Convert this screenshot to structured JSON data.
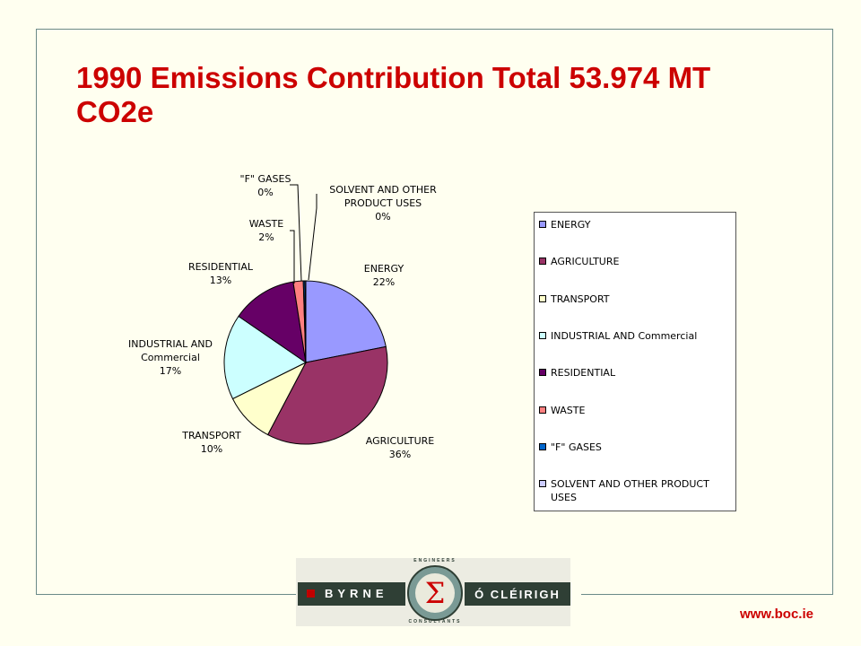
{
  "title": "1990 Emissions Contribution Total 53.974 MT CO2e",
  "chart_data": {
    "type": "pie",
    "title": "1990 Emissions Contribution Total 53.974 MT CO2e",
    "slices": [
      {
        "name": "ENERGY",
        "value": 22,
        "pct_label": "22%",
        "label_lines": [
          "ENERGY"
        ],
        "color": "#9999ff"
      },
      {
        "name": "AGRICULTURE",
        "value": 36,
        "pct_label": "36%",
        "label_lines": [
          "AGRICULTURE"
        ],
        "color": "#993366"
      },
      {
        "name": "TRANSPORT",
        "value": 10,
        "pct_label": "10%",
        "label_lines": [
          "TRANSPORT"
        ],
        "color": "#ffffcc"
      },
      {
        "name": "INDUSTRIAL AND Commercial",
        "value": 17,
        "pct_label": "17%",
        "label_lines": [
          "INDUSTRIAL AND",
          "Commercial"
        ],
        "color": "#ccffff"
      },
      {
        "name": "RESIDENTIAL",
        "value": 13,
        "pct_label": "13%",
        "label_lines": [
          "RESIDENTIAL"
        ],
        "color": "#660066"
      },
      {
        "name": "WASTE",
        "value": 2,
        "pct_label": "2%",
        "label_lines": [
          "WASTE"
        ],
        "color": "#ff8080"
      },
      {
        "name": "\"F\" GASES",
        "value": 0.3,
        "pct_label": "0%",
        "label_lines": [
          "\"F\" GASES"
        ],
        "color": "#0066cc"
      },
      {
        "name": "SOLVENT AND OTHER PRODUCT USES",
        "value": 0.2,
        "pct_label": "0%",
        "label_lines": [
          "SOLVENT AND OTHER",
          "PRODUCT USES"
        ],
        "color": "#ccccff"
      }
    ],
    "legend_placement": "right"
  },
  "legend": [
    {
      "label": "ENERGY",
      "color": "#9999ff"
    },
    {
      "label": "AGRICULTURE",
      "color": "#993366"
    },
    {
      "label": "TRANSPORT",
      "color": "#ffffcc"
    },
    {
      "label": "INDUSTRIAL AND Commercial",
      "color": "#ccffff"
    },
    {
      "label": "RESIDENTIAL",
      "color": "#660066"
    },
    {
      "label": "WASTE",
      "color": "#ff8080"
    },
    {
      "label": "\"F\" GASES",
      "color": "#0066cc"
    },
    {
      "label": "SOLVENT AND OTHER PRODUCT USES",
      "color": "#ccccff"
    }
  ],
  "logo": {
    "left_text": "BYRNE",
    "right_text": "Ó CLÉIRIGH",
    "symbol": "Σ",
    "top_arc": "ENGINEERS",
    "bottom_arc": "CONSULTANTS"
  },
  "url": "www.boc.ie"
}
